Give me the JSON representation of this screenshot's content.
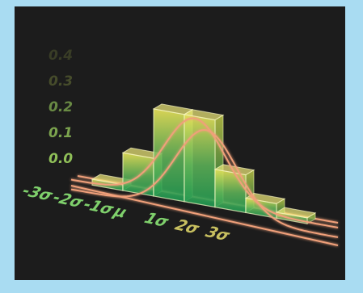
{
  "chart_data": {
    "type": "bar",
    "title": "",
    "xlabel": "",
    "ylabel": "",
    "y_ticks": [
      "0.4",
      "0.3",
      "0.2",
      "0.1",
      "0.0"
    ],
    "ylim": [
      0,
      0.4
    ],
    "categories": [
      "-3σ",
      "-2σ",
      "-1σ",
      "μ",
      "1σ",
      "2σ",
      "3σ"
    ],
    "values": [
      0.02,
      0.13,
      0.3,
      0.3,
      0.13,
      0.05,
      0.02
    ],
    "curve": "normal-density",
    "grid": false,
    "legend": "none",
    "colors": {
      "bar_top": "#e8e35a",
      "bar_bottom": "#1f9a52",
      "curve": "#f0a07a",
      "tick_label": "#7fd06c",
      "background": "#1c1c1c",
      "page": "#a9dcf2"
    }
  }
}
